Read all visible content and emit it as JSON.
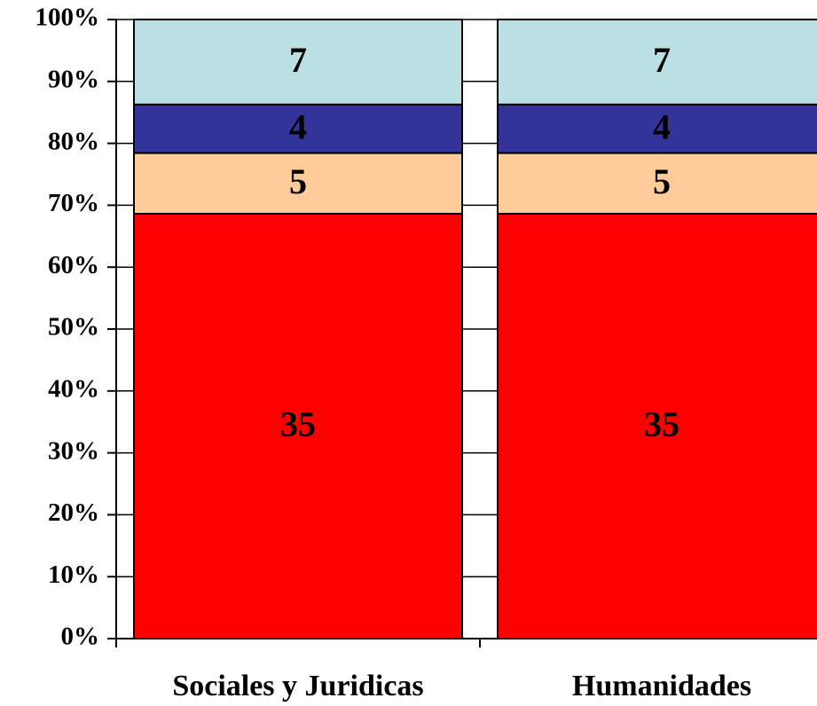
{
  "chart_data": {
    "type": "bar",
    "stacking": "percent",
    "categories": [
      "Sociales y Juridicas",
      "Humanidades"
    ],
    "series": [
      {
        "color": "#ff0000",
        "values": [
          35,
          35
        ]
      },
      {
        "color": "#ffcc99",
        "values": [
          5,
          5
        ]
      },
      {
        "color": "#333399",
        "values": [
          4,
          4
        ]
      },
      {
        "color": "#bbe0e3",
        "values": [
          7,
          7
        ]
      }
    ],
    "ylim": [
      0,
      100
    ],
    "yticks": [
      {
        "value": 0,
        "label": "0%"
      },
      {
        "value": 10,
        "label": "10%"
      },
      {
        "value": 20,
        "label": "20%"
      },
      {
        "value": 30,
        "label": "30%"
      },
      {
        "value": 40,
        "label": "40%"
      },
      {
        "value": 50,
        "label": "50%"
      },
      {
        "value": 60,
        "label": "60%"
      },
      {
        "value": 70,
        "label": "70%"
      },
      {
        "value": 80,
        "label": "80%"
      },
      {
        "value": 90,
        "label": "90%"
      },
      {
        "value": 100,
        "label": "100%"
      }
    ],
    "grid": true
  }
}
